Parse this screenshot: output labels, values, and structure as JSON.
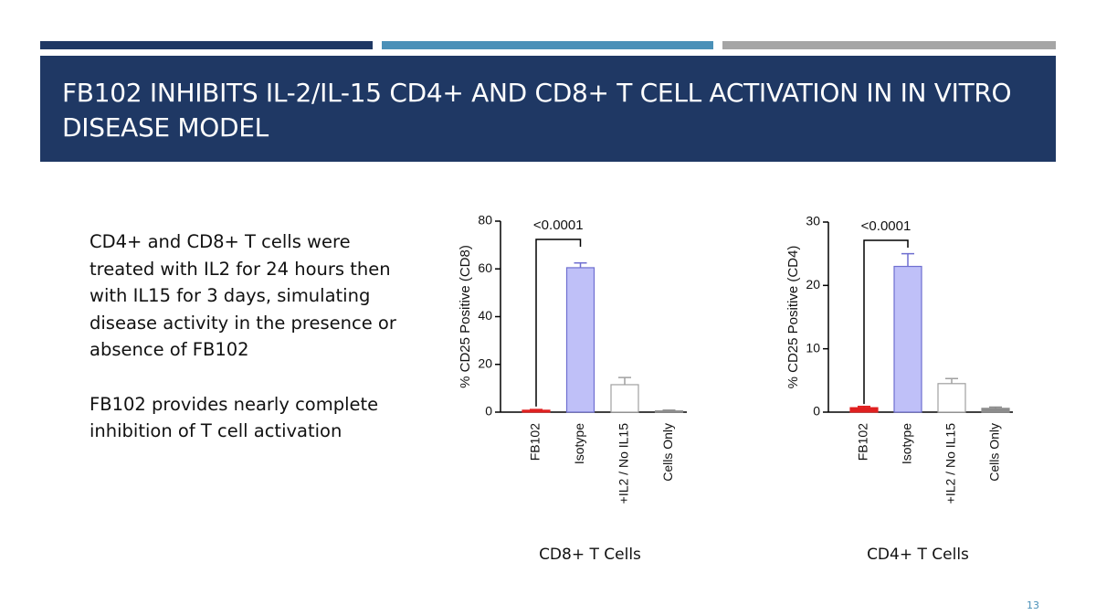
{
  "slide": {
    "title": "FB102 INHIBITS IL-2/IL-15 CD4+ AND CD8+ T CELL ACTIVATION IN IN VITRO DISEASE MODEL",
    "body": [
      "CD4+ and CD8+ T cells were treated with IL2 for 24 hours then with IL15 for 3 days, simulating disease activity in the presence or absence of FB102",
      "FB102 provides nearly complete inhibition of T cell activation"
    ],
    "page_number": "13"
  },
  "chart_data": [
    {
      "type": "bar",
      "ylabel": "% CD25 Positive (CD8)",
      "xlabel": "CD8+ T Cells",
      "categories": [
        "FB102",
        "Isotype",
        "+IL2 / No IL15",
        "Cells Only"
      ],
      "values": [
        0.8,
        60.5,
        11.5,
        0.5
      ],
      "errors": [
        0.3,
        2,
        3,
        0.3
      ],
      "colors": [
        "#e02020",
        "#bfc0f8",
        "#ffffff",
        "#8c8c8c"
      ],
      "edge_colors": [
        "#e02020",
        "#6f6fd0",
        "#a0a0a0",
        "#8c8c8c"
      ],
      "ylim": [
        0,
        80
      ],
      "yticks": [
        0,
        20,
        40,
        60,
        80
      ],
      "annotation": "<0.0001"
    },
    {
      "type": "bar",
      "ylabel": "% CD25 Positive (CD4)",
      "xlabel": "CD4+ T Cells",
      "categories": [
        "FB102",
        "Isotype",
        "+IL2 / No IL15",
        "Cells Only"
      ],
      "values": [
        0.7,
        23,
        4.5,
        0.6
      ],
      "errors": [
        0.2,
        2,
        0.8,
        0.2
      ],
      "colors": [
        "#e02020",
        "#bfc0f8",
        "#ffffff",
        "#8c8c8c"
      ],
      "edge_colors": [
        "#e02020",
        "#6f6fd0",
        "#a0a0a0",
        "#8c8c8c"
      ],
      "ylim": [
        0,
        30
      ],
      "yticks": [
        0,
        10,
        20,
        30
      ],
      "annotation": "<0.0001"
    }
  ]
}
